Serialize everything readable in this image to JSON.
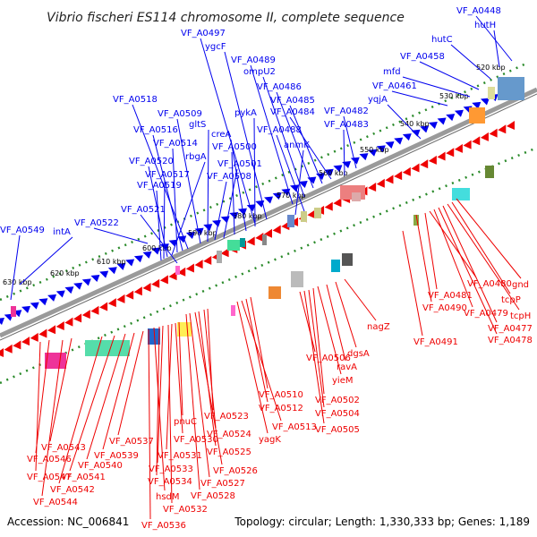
{
  "title": "Vibrio fischeri ES114 chromosome II, complete sequence",
  "footer": {
    "accession": "Accession: NC_006841",
    "summary": "Topology: circular; Length: 1,330,333 bp; Genes: 1,189"
  },
  "colors": {
    "forward_gene": "#0000ee",
    "reverse_gene": "#ee0000",
    "backbone": "#808080",
    "dotted_ring": "#2a8a2a"
  },
  "ticks": [
    "520 kbp",
    "530 kbp",
    "540 kbp",
    "550 kbp",
    "560 kbp",
    "570 kbp",
    "580 kbp",
    "590 kbp",
    "600 kbp",
    "610 kbp",
    "620 kbp",
    "630 kbp"
  ],
  "forward_labels": [
    "VF_A0448",
    "hutH",
    "hutC",
    "VF_A0458",
    "mfd",
    "VF_A0461",
    "yqjA",
    "VF_A0482",
    "VF_A0483",
    "VF_A0484",
    "VF_A0485",
    "VF_A0486",
    "ompU2",
    "VF_A0489",
    "VF_A0488",
    "anmK",
    "ygcF",
    "VF_A0497",
    "pykA",
    "creA",
    "VF_A0500",
    "VF_A0501",
    "VF_A0508",
    "gltS",
    "VF_A0509",
    "VF_A0518",
    "VF_A0516",
    "VF_A0514",
    "rbgA",
    "VF_A0520",
    "VF_A0517",
    "VF_A0519",
    "VF_A0521",
    "VF_A0522",
    "intA",
    "VF_A0549"
  ],
  "reverse_labels": [
    "gnd",
    "tcpP",
    "tcpH",
    "VF_A0477",
    "VF_A0478",
    "VF_A0479",
    "VF_A0480",
    "VF_A0481",
    "VF_A0490",
    "VF_A0491",
    "nagZ",
    "dgsA",
    "ravA",
    "yieM",
    "VF_A0502",
    "VF_A0504",
    "VF_A0505",
    "VF_A0506",
    "VF_A0510",
    "VF_A0512",
    "VF_A0513",
    "yagK",
    "VF_A0523",
    "VF_A0524",
    "VF_A0525",
    "VF_A0526",
    "VF_A0527",
    "VF_A0528",
    "pnuC",
    "VF_A0530",
    "VF_A0531",
    "VF_A0532",
    "VF_A0533",
    "VF_A0534",
    "hsdM",
    "VF_A0536",
    "VF_A0537",
    "VF_A0539",
    "VF_A0540",
    "VF_A0541",
    "VF_A0542",
    "VF_A0543",
    "VF_A0544",
    "VF_A0546",
    "VF_A0547"
  ]
}
